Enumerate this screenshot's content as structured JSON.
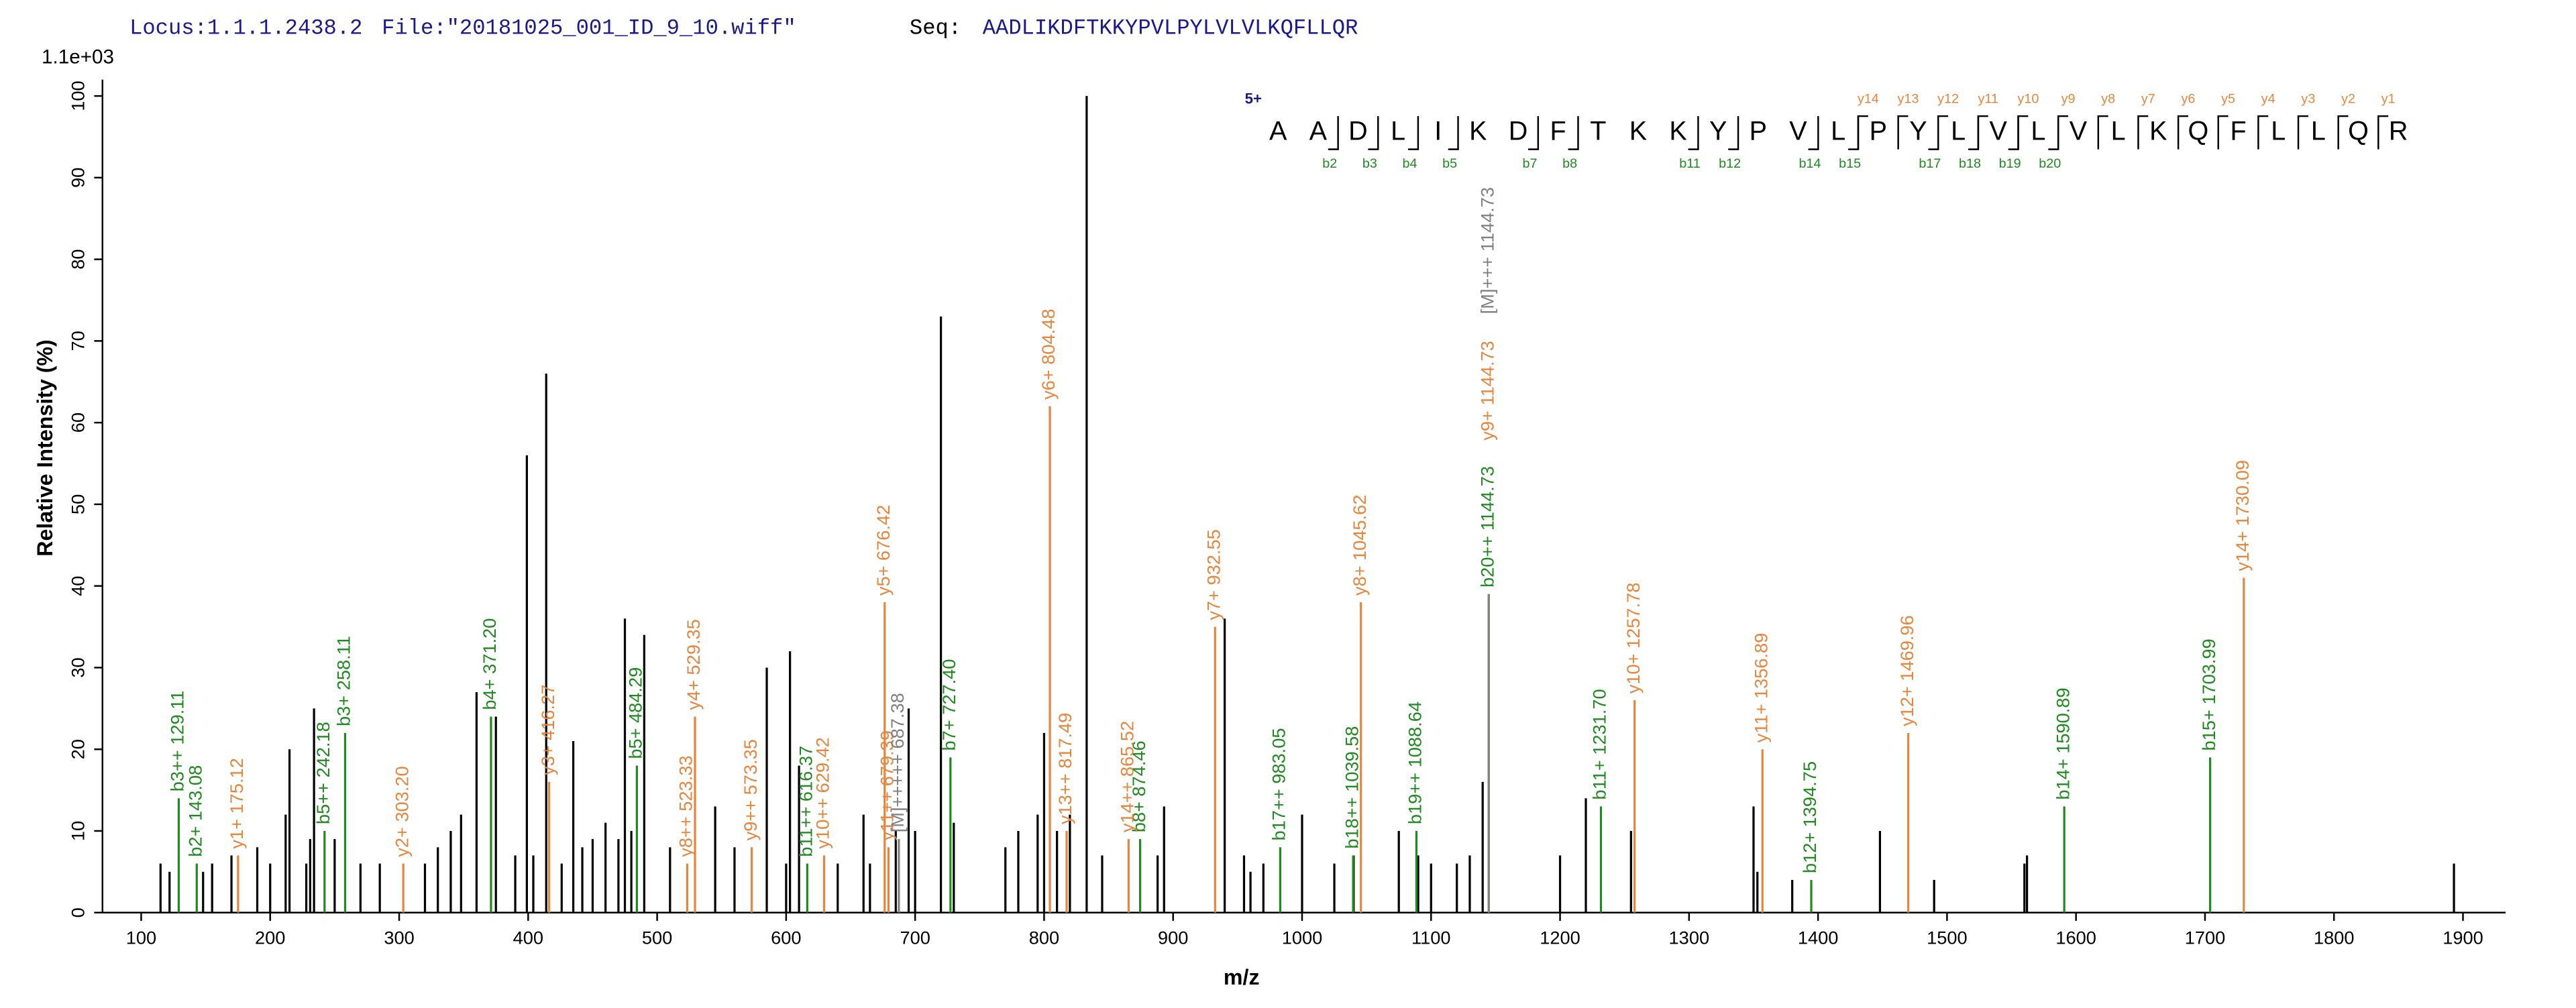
{
  "chart_data": {
    "type": "spectrum",
    "header": {
      "locus": "Locus:1.1.1.2438.2",
      "file": "File:\"20181025_001_ID_9_10.wiff\"",
      "seq_label": "Seq:",
      "sequence": "AADLIKDFTKKYPVLPYLVLVLKQFLLQR"
    },
    "scale_label": "1.1e+03",
    "ylabel": "Relative  Intensity (%)",
    "xlabel": "m/z",
    "xlim": [
      70,
      1933
    ],
    "ylim": [
      0,
      102
    ],
    "xticks": [
      100,
      200,
      300,
      400,
      500,
      600,
      700,
      800,
      900,
      1000,
      1100,
      1200,
      1300,
      1400,
      1500,
      1600,
      1700,
      1800,
      1900
    ],
    "yticks": [
      0,
      10,
      20,
      30,
      40,
      50,
      60,
      70,
      80,
      90,
      100
    ],
    "fragments": {
      "charge": "5+",
      "residues": [
        "A",
        "A",
        "D",
        "L",
        "I",
        "K",
        "D",
        "F",
        "T",
        "K",
        "K",
        "Y",
        "P",
        "V",
        "L",
        "P",
        "Y",
        "L",
        "V",
        "L",
        "V",
        "L",
        "K",
        "Q",
        "F",
        "L",
        "L",
        "Q",
        "R"
      ],
      "b_ions": [
        "b2",
        "b3",
        "b4",
        "b5",
        "b7",
        "b8",
        "b11",
        "b12",
        "b14",
        "b15",
        "b17",
        "b18",
        "b19",
        "b20"
      ],
      "y_ions": [
        "y14",
        "y13",
        "y12",
        "y11",
        "y10",
        "y9",
        "y8",
        "y7",
        "y6",
        "y5",
        "y4",
        "y3",
        "y2",
        "y1"
      ],
      "b_color": "#1f8a1f",
      "y_color": "#e8853d"
    },
    "series": [
      {
        "color": "#000000",
        "x": [
          115,
          122,
          148,
          155,
          170,
          190,
          200,
          212,
          215,
          228,
          231,
          234,
          250,
          270,
          285,
          320,
          330,
          340,
          348,
          360,
          375,
          390,
          399,
          404,
          414,
          426,
          435,
          442,
          450,
          460,
          470,
          475,
          480,
          490,
          510,
          545,
          560,
          585,
          600,
          603,
          610,
          640,
          660,
          665,
          685,
          695,
          700,
          720,
          730,
          770,
          780,
          795,
          800,
          810,
          820,
          833,
          845,
          888,
          893,
          940,
          955,
          960,
          970,
          1000,
          1025,
          1040,
          1075,
          1090,
          1100,
          1120,
          1130,
          1140,
          1200,
          1220,
          1255,
          1350,
          1353,
          1380,
          1448,
          1490,
          1560,
          1562,
          1893
        ],
        "values": [
          6,
          5,
          5,
          6,
          7,
          8,
          6,
          12,
          20,
          6,
          9,
          25,
          9,
          6,
          6,
          6,
          8,
          10,
          12,
          27,
          24,
          7,
          56,
          7,
          66,
          6,
          21,
          8,
          9,
          11,
          9,
          36,
          10,
          34,
          8,
          13,
          8,
          30,
          6,
          32,
          18,
          6,
          12,
          6,
          10,
          25,
          10,
          73,
          11,
          8,
          10,
          12,
          22,
          10,
          12,
          100,
          7,
          7,
          13,
          36,
          7,
          5,
          6,
          12,
          6,
          7,
          10,
          7,
          6,
          6,
          7,
          16,
          7,
          14,
          10,
          13,
          5,
          4,
          10,
          4,
          6,
          7,
          6
        ]
      },
      {
        "color": "#1f8a1f",
        "x": [
          129.11,
          143.08,
          242.18,
          258.11,
          371.2,
          484.29,
          616.37,
          727.4,
          874.46,
          983.05,
          1039.58,
          1088.64,
          1144.73,
          1231.7,
          1394.75,
          1590.89,
          1703.99
        ],
        "values": [
          14,
          6,
          10,
          22,
          24,
          18,
          6,
          19,
          9,
          8,
          7,
          10,
          39,
          13,
          4,
          13,
          19
        ],
        "labels": [
          "b3++ 129.11",
          "b2+ 143.08",
          "b5++ 242.18",
          "b3+ 258.11",
          "b4+ 371.20",
          "b5+ 484.29",
          "b11++ 616.37",
          "b7+ 727.40",
          "b8+ 874.46",
          "b17++ 983.05",
          "b18++ 1039.58",
          "b19++ 1088.64",
          "b20++ 1144.73",
          "b11+ 1231.70",
          "b12+ 1394.75",
          "b14+ 1590.89",
          "b15+ 1703.99"
        ]
      },
      {
        "color": "#e8853d",
        "x": [
          175.12,
          303.2,
          416.27,
          523.33,
          529.35,
          573.35,
          629.42,
          676.42,
          679.39,
          804.48,
          817.49,
          865.52,
          932.55,
          1045.62,
          1144.73,
          1257.78,
          1356.89,
          1469.96,
          1730.09
        ],
        "values": [
          7,
          6,
          16,
          6,
          24,
          8,
          7,
          38,
          8,
          62,
          10,
          9,
          35,
          38,
          39,
          26,
          20,
          22,
          41
        ],
        "labels": [
          "y1+ 175.12",
          "y2+ 303.20",
          "y3+ 416.27",
          "y8++ 523.33",
          "y4+ 529.35",
          "y9++ 573.35",
          "y10++ 629.42",
          "y5+ 676.42",
          "y11++ 679.39",
          "y6+ 804.48",
          "y13++ 817.49",
          "y14++ 865.52",
          "y7+ 932.55",
          "y8+ 1045.62",
          "y9+ 1144.73",
          "y10+ 1257.78",
          "y11+ 1356.89",
          "y12+ 1469.96",
          "y14+ 1730.09"
        ]
      },
      {
        "color": "#808080",
        "x": [
          687.38,
          1144.73
        ],
        "values": [
          9,
          39
        ],
        "labels": [
          "[M]+++++ 687.38",
          "[M]+++ 1144.73"
        ]
      }
    ]
  }
}
